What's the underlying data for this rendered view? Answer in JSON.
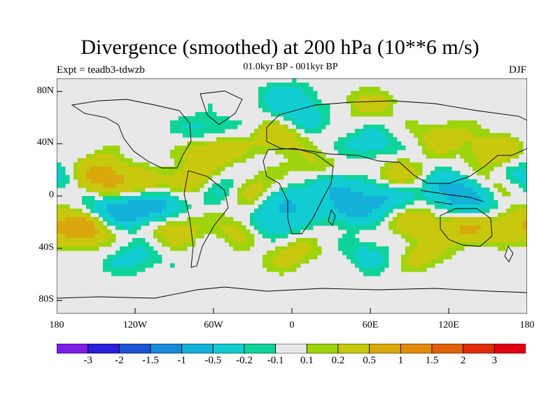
{
  "title": "Divergence (smoothed) at 200 hPa (10**6 m/s)",
  "experiment": "Expt = teadb3-tdwzb",
  "period": "01.0kyr BP - 001kyr BP",
  "season": "DJF",
  "chart_data": {
    "type": "heatmap",
    "projection": "cylindrical-equidistant",
    "lon_range": [
      -180,
      180
    ],
    "lat_range": [
      -90,
      90
    ],
    "y_ticks": [
      "80N",
      "40N",
      "0",
      "40S",
      "80S"
    ],
    "y_tick_values": [
      80,
      40,
      0,
      -40,
      -80
    ],
    "x_ticks": [
      "180",
      "120W",
      "60W",
      "0",
      "60E",
      "120E",
      "180"
    ],
    "x_tick_values": [
      -180,
      -120,
      -60,
      0,
      60,
      120,
      180
    ],
    "colorbar": {
      "labels": [
        "-3",
        "-2",
        "-1.5",
        "-1",
        "-0.5",
        "-0.2",
        "-0.1",
        "0.1",
        "0.2",
        "0.5",
        "1",
        "1.5",
        "2",
        "3"
      ],
      "colors": [
        "#7c1ee6",
        "#2a1ed8",
        "#1c52d6",
        "#178ad8",
        "#13b0d8",
        "#11ccd0",
        "#0fd49a",
        "#e8e8e8",
        "#9ed40e",
        "#c8c80e",
        "#d8a80c",
        "#e08a08",
        "#e06008",
        "#e02c08",
        "#e00010"
      ]
    },
    "anomalies": [
      {
        "lon": -160,
        "lat": -25,
        "v": 0.8
      },
      {
        "lon": -150,
        "lat": 20,
        "v": 0.35
      },
      {
        "lon": -140,
        "lat": 12,
        "v": 0.5
      },
      {
        "lon": -110,
        "lat": 5,
        "v": 0.4
      },
      {
        "lon": -100,
        "lat": -5,
        "v": -0.6
      },
      {
        "lon": -120,
        "lat": -12,
        "v": -0.5
      },
      {
        "lon": -140,
        "lat": -10,
        "v": -0.45
      },
      {
        "lon": -90,
        "lat": -25,
        "v": 0.4
      },
      {
        "lon": -75,
        "lat": 12,
        "v": 0.5
      },
      {
        "lon": -55,
        "lat": 8,
        "v": -0.4
      },
      {
        "lon": -60,
        "lat": 35,
        "v": 0.55
      },
      {
        "lon": -65,
        "lat": 50,
        "v": -0.35
      },
      {
        "lon": -30,
        "lat": 5,
        "v": 0.35
      },
      {
        "lon": -15,
        "lat": -20,
        "v": -0.5
      },
      {
        "lon": -40,
        "lat": -25,
        "v": 0.3
      },
      {
        "lon": 0,
        "lat": -5,
        "v": -0.45
      },
      {
        "lon": -10,
        "lat": 45,
        "v": 0.4
      },
      {
        "lon": 10,
        "lat": 60,
        "v": -0.3
      },
      {
        "lon": 20,
        "lat": 20,
        "v": 0.35
      },
      {
        "lon": 30,
        "lat": 10,
        "v": -0.5
      },
      {
        "lon": 45,
        "lat": -10,
        "v": -0.6
      },
      {
        "lon": 70,
        "lat": 0,
        "v": -0.55
      },
      {
        "lon": 80,
        "lat": 15,
        "v": 0.4
      },
      {
        "lon": 60,
        "lat": 40,
        "v": -0.35
      },
      {
        "lon": 95,
        "lat": -20,
        "v": 0.4
      },
      {
        "lon": 120,
        "lat": 5,
        "v": -0.6
      },
      {
        "lon": 140,
        "lat": -5,
        "v": -0.5
      },
      {
        "lon": 135,
        "lat": -25,
        "v": 0.55
      },
      {
        "lon": 160,
        "lat": 10,
        "v": 0.35
      },
      {
        "lon": 155,
        "lat": 35,
        "v": 0.45
      },
      {
        "lon": 115,
        "lat": 45,
        "v": 0.35
      },
      {
        "lon": 170,
        "lat": -20,
        "v": 0.35
      },
      {
        "lon": 175,
        "lat": 15,
        "v": -0.45
      },
      {
        "lon": -5,
        "lat": 75,
        "v": -0.35
      },
      {
        "lon": 60,
        "lat": 70,
        "v": 0.3
      },
      {
        "lon": 0,
        "lat": -45,
        "v": 0.3
      },
      {
        "lon": 60,
        "lat": -45,
        "v": -0.3
      },
      {
        "lon": 100,
        "lat": -45,
        "v": 0.3
      },
      {
        "lon": -120,
        "lat": -48,
        "v": -0.3
      }
    ]
  }
}
